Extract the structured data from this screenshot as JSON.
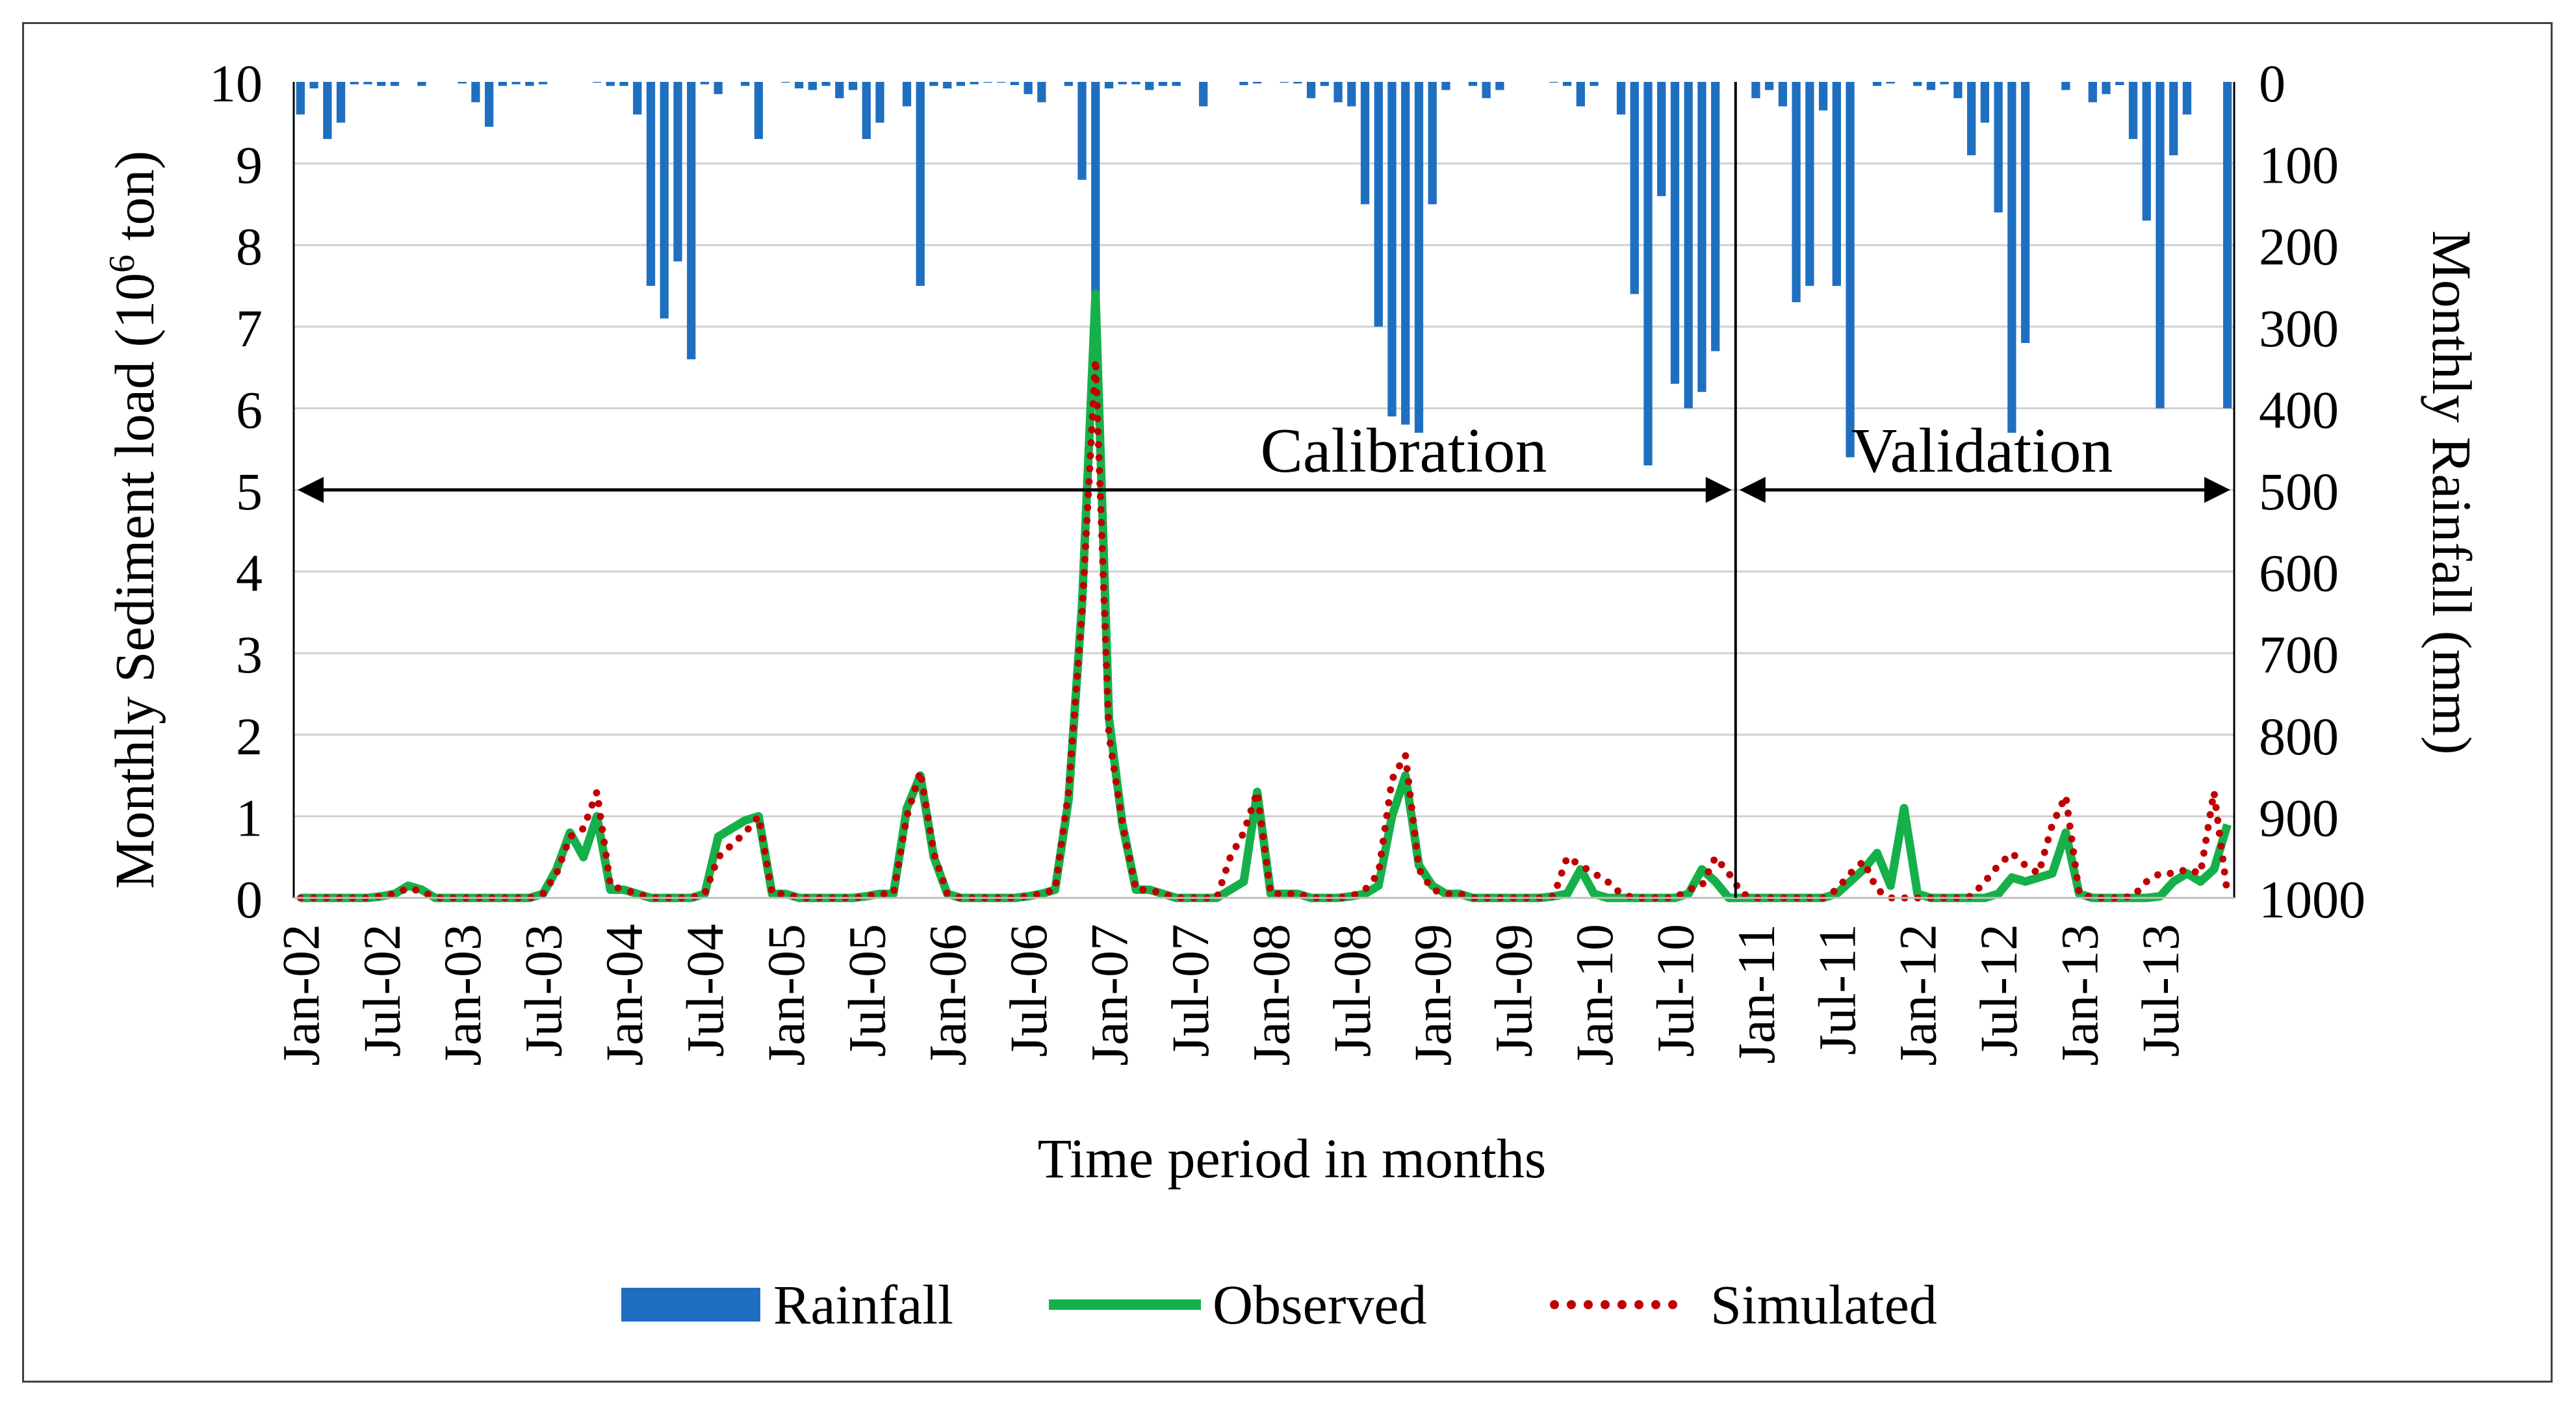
{
  "chart_data": {
    "type": "bar+line",
    "title": "",
    "xlabel": "Time period in months",
    "ylabel_left_pre": "Monthly  Sediment  load  (10",
    "ylabel_left_sup": "6",
    "ylabel_left_post": " ton)",
    "ylabel_right": "Monthly  Rainfall  (mm)",
    "ylim_left": [
      0,
      10
    ],
    "ylim_right": [
      1000,
      0
    ],
    "left_ticks": [
      "0",
      "1",
      "2",
      "3",
      "4",
      "5",
      "6",
      "7",
      "8",
      "9",
      "10"
    ],
    "right_ticks": [
      "0",
      "100",
      "200",
      "300",
      "400",
      "500",
      "600",
      "700",
      "800",
      "900",
      "1000"
    ],
    "x_tick_labels": [
      "Jan-02",
      "Jul-02",
      "Jan-03",
      "Jul-03",
      "Jan-04",
      "Jul-04",
      "Jan-05",
      "Jul-05",
      "Jan-06",
      "Jul-06",
      "Jan-07",
      "Jul-07",
      "Jan-08",
      "Jul-08",
      "Jan-09",
      "Jul-09",
      "Jan-10",
      "Jul-10",
      "Jan-11",
      "Jul-11",
      "Jan-12",
      "Jul-12",
      "Jan-13",
      "Jul-13"
    ],
    "n_months": 144,
    "grid": true,
    "legend_position": "bottom",
    "legend": [
      "Rainfall",
      "Observed",
      "Simulated"
    ],
    "colors": {
      "rainfall": "#1f6fc0",
      "observed": "#16b04a",
      "simulated": "#c00000",
      "grid": "#d0d0d0",
      "axis": "#000000"
    },
    "annotations": {
      "calibration": "Calibration",
      "validation": "Validation",
      "split_month_index": 106
    },
    "series": [
      {
        "name": "Rainfall",
        "unit": "mm",
        "values": [
          40,
          8,
          70,
          50,
          3,
          3,
          5,
          5,
          0,
          5,
          0,
          0,
          2,
          25,
          55,
          5,
          3,
          5,
          3,
          0,
          0,
          0,
          1,
          5,
          5,
          40,
          250,
          290,
          220,
          340,
          3,
          15,
          0,
          5,
          70,
          0,
          1,
          8,
          10,
          5,
          20,
          10,
          70,
          50,
          0,
          30,
          250,
          5,
          8,
          5,
          3,
          1,
          1,
          4,
          15,
          25,
          0,
          5,
          120,
          310,
          8,
          3,
          3,
          10,
          5,
          5,
          0,
          30,
          0,
          0,
          4,
          2,
          0,
          1,
          2,
          20,
          5,
          25,
          30,
          150,
          300,
          410,
          420,
          430,
          150,
          10,
          0,
          5,
          20,
          10,
          0,
          0,
          0,
          1,
          5,
          30,
          5,
          0,
          40,
          260,
          470,
          140,
          370,
          400,
          380,
          330,
          0,
          0,
          20,
          10,
          30,
          270,
          250,
          35,
          250,
          460,
          0,
          5,
          2,
          0,
          5,
          10,
          3,
          20,
          90,
          50,
          160,
          430,
          320,
          0,
          0,
          10,
          0,
          25,
          15,
          4,
          70,
          170,
          400,
          90,
          40,
          0,
          0,
          400
        ]
      },
      {
        "name": "Observed",
        "unit": "1e6 ton",
        "values": [
          0,
          0,
          0,
          0,
          0,
          0,
          0.02,
          0.05,
          0.15,
          0.1,
          0,
          0,
          0,
          0,
          0,
          0,
          0,
          0,
          0.05,
          0.35,
          0.8,
          0.5,
          1.0,
          0.1,
          0.1,
          0.05,
          0,
          0,
          0,
          0,
          0.05,
          0.75,
          0.85,
          0.95,
          1.0,
          0.05,
          0.05,
          0,
          0,
          0,
          0,
          0,
          0.02,
          0.05,
          0.05,
          1.1,
          1.5,
          0.5,
          0.05,
          0,
          0,
          0,
          0,
          0,
          0.02,
          0.05,
          0.1,
          1.2,
          3.6,
          7.4,
          2.2,
          0.9,
          0.1,
          0.1,
          0.05,
          0,
          0,
          0,
          0,
          0.1,
          0.2,
          1.3,
          0.05,
          0.05,
          0.05,
          0,
          0,
          0,
          0.02,
          0.05,
          0.15,
          1.0,
          1.5,
          0.4,
          0.15,
          0.05,
          0.05,
          0,
          0,
          0,
          0,
          0,
          0,
          0.02,
          0.05,
          0.35,
          0.05,
          0,
          0,
          0,
          0,
          0,
          0,
          0.05,
          0.35,
          0.2,
          0,
          0,
          0,
          0,
          0,
          0,
          0,
          0,
          0.05,
          0.2,
          0.35,
          0.55,
          0.15,
          1.1,
          0.05,
          0,
          0,
          0,
          0,
          0,
          0.05,
          0.25,
          0.2,
          0.25,
          0.3,
          0.8,
          0.05,
          0,
          0,
          0,
          0,
          0,
          0.02,
          0.2,
          0.3,
          0.2,
          0.35,
          0.9
        ]
      },
      {
        "name": "Simulated",
        "unit": "1e6 ton",
        "values": [
          0,
          0,
          0,
          0,
          0,
          0,
          0.02,
          0.05,
          0.12,
          0.08,
          0,
          0,
          0,
          0,
          0,
          0,
          0,
          0,
          0.05,
          0.3,
          0.75,
          0.85,
          1.3,
          0.15,
          0.1,
          0.05,
          0,
          0,
          0,
          0,
          0.05,
          0.5,
          0.65,
          0.8,
          1.0,
          0.05,
          0.05,
          0,
          0,
          0,
          0,
          0,
          0.02,
          0.05,
          0.05,
          1.0,
          1.55,
          0.55,
          0.05,
          0,
          0,
          0,
          0,
          0,
          0.02,
          0.05,
          0.1,
          1.3,
          3.5,
          6.6,
          2.0,
          0.9,
          0.1,
          0.1,
          0.05,
          0,
          0,
          0,
          0,
          0.5,
          0.8,
          1.3,
          0.05,
          0.05,
          0.05,
          0,
          0,
          0,
          0.02,
          0.1,
          0.3,
          1.45,
          1.75,
          0.35,
          0.1,
          0.05,
          0.05,
          0,
          0,
          0,
          0,
          0,
          0,
          0.02,
          0.5,
          0.4,
          0.3,
          0.2,
          0.05,
          0,
          0,
          0,
          0,
          0.1,
          0.15,
          0.5,
          0.3,
          0.05,
          0,
          0,
          0,
          0,
          0,
          0,
          0.1,
          0.3,
          0.45,
          0.1,
          0,
          0,
          0,
          0,
          0,
          0,
          0.02,
          0.2,
          0.4,
          0.55,
          0.4,
          0.3,
          0.9,
          1.25,
          0.05,
          0,
          0,
          0,
          0.02,
          0.2,
          0.3,
          0.3,
          0.35,
          0.3,
          1.3,
          0.05
        ]
      }
    ]
  }
}
